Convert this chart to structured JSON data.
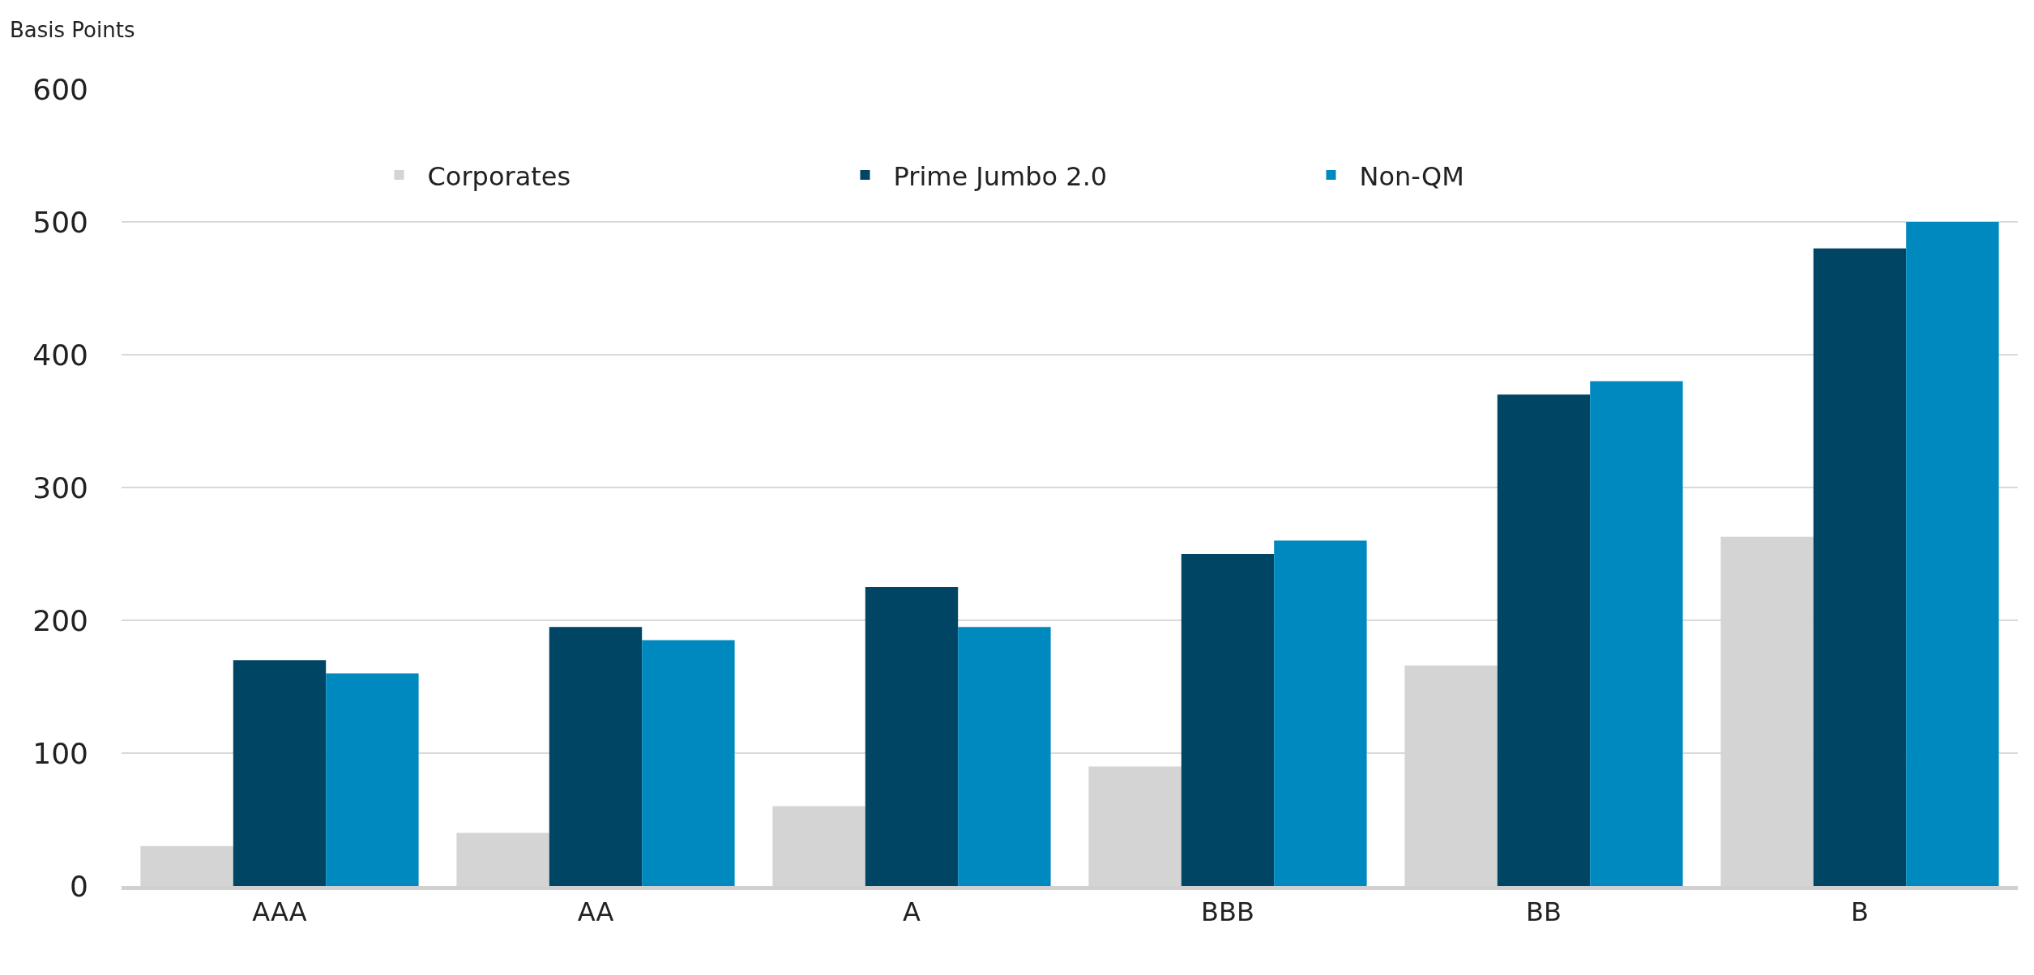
{
  "chart_data": {
    "type": "bar",
    "ylabel": "Basis Points",
    "categories": [
      "AAA",
      "AA",
      "A",
      "BBB",
      "BB",
      "B"
    ],
    "series": [
      {
        "name": "Corporates",
        "color": "#d4d4d4",
        "values": [
          30,
          40,
          60,
          90,
          166,
          263
        ]
      },
      {
        "name": "Prime Jumbo 2.0",
        "color": "#004563",
        "values": [
          170,
          195,
          225,
          250,
          370,
          480
        ]
      },
      {
        "name": "Non-QM",
        "color": "#0089bf",
        "values": [
          160,
          185,
          195,
          260,
          380,
          500
        ]
      }
    ],
    "ylim": [
      0,
      600
    ],
    "yticks": [
      0,
      100,
      200,
      300,
      400,
      500,
      600
    ],
    "grid": "y",
    "legend": "top"
  }
}
